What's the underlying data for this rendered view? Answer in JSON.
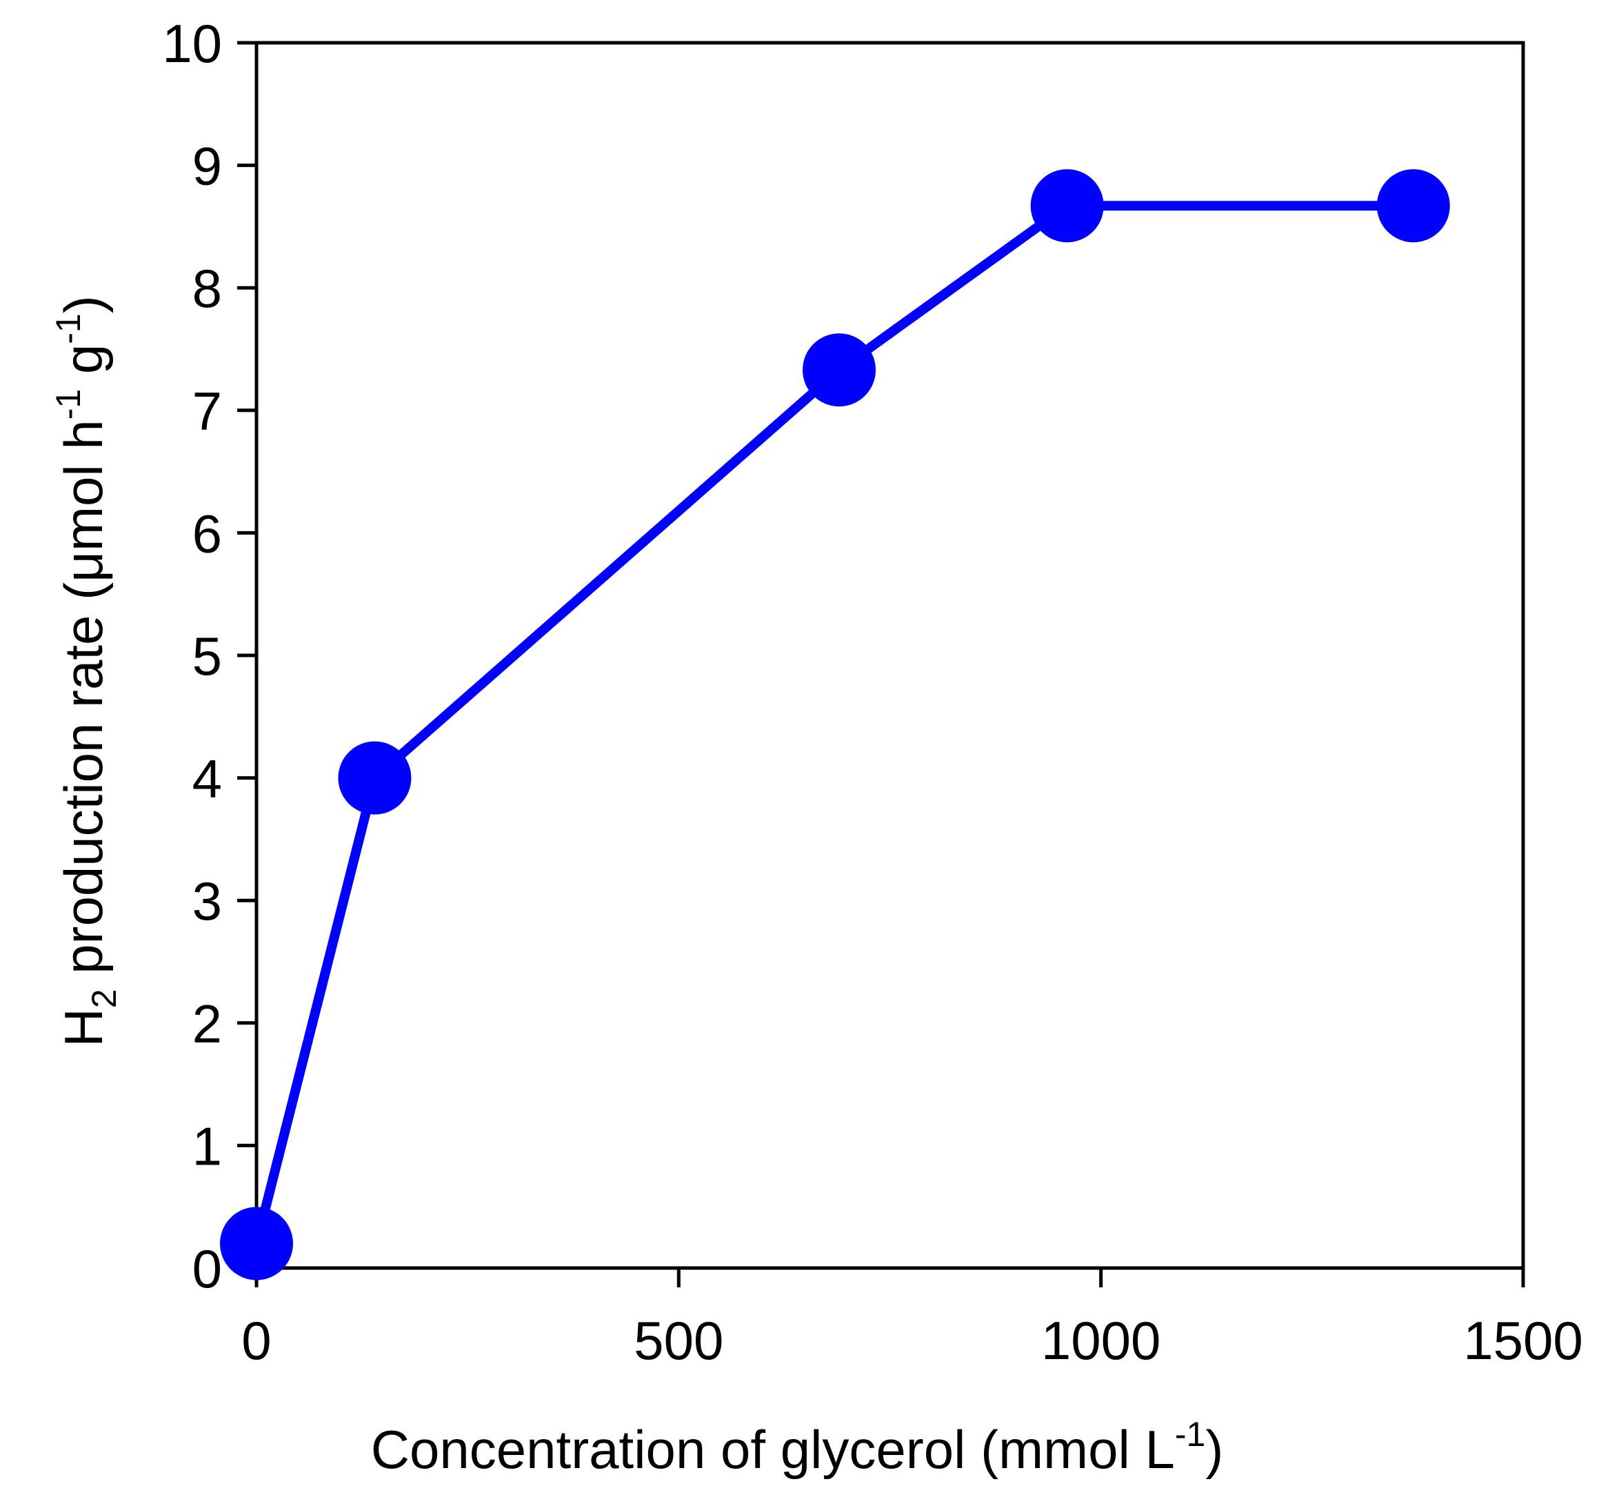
{
  "chart_data": {
    "type": "line",
    "x_axis": {
      "label_parts": [
        "Concentration of glycerol (mmol L",
        "-1",
        ")"
      ],
      "lim": [
        0,
        1500
      ],
      "ticks": [
        0,
        500,
        1000,
        1500
      ],
      "tick_labels": [
        "0",
        "500",
        "1000",
        "1500"
      ]
    },
    "y_axis": {
      "label_parts": [
        "H",
        "2",
        " production rate (μmol h",
        "-1",
        " g",
        "-1",
        ")"
      ],
      "lim": [
        0,
        10
      ],
      "ticks": [
        0,
        1,
        2,
        3,
        4,
        5,
        6,
        7,
        8,
        9,
        10
      ],
      "tick_labels": [
        "0",
        "1",
        "2",
        "3",
        "4",
        "5",
        "6",
        "7",
        "8",
        "9",
        "10"
      ]
    },
    "series": [
      {
        "x": [
          0,
          140,
          690,
          960,
          1370
        ],
        "y": [
          0.2,
          4.0,
          7.33,
          8.67,
          8.67
        ],
        "color": "#0000ff",
        "marker": "circle"
      }
    ],
    "grid": false,
    "legend": "none"
  }
}
